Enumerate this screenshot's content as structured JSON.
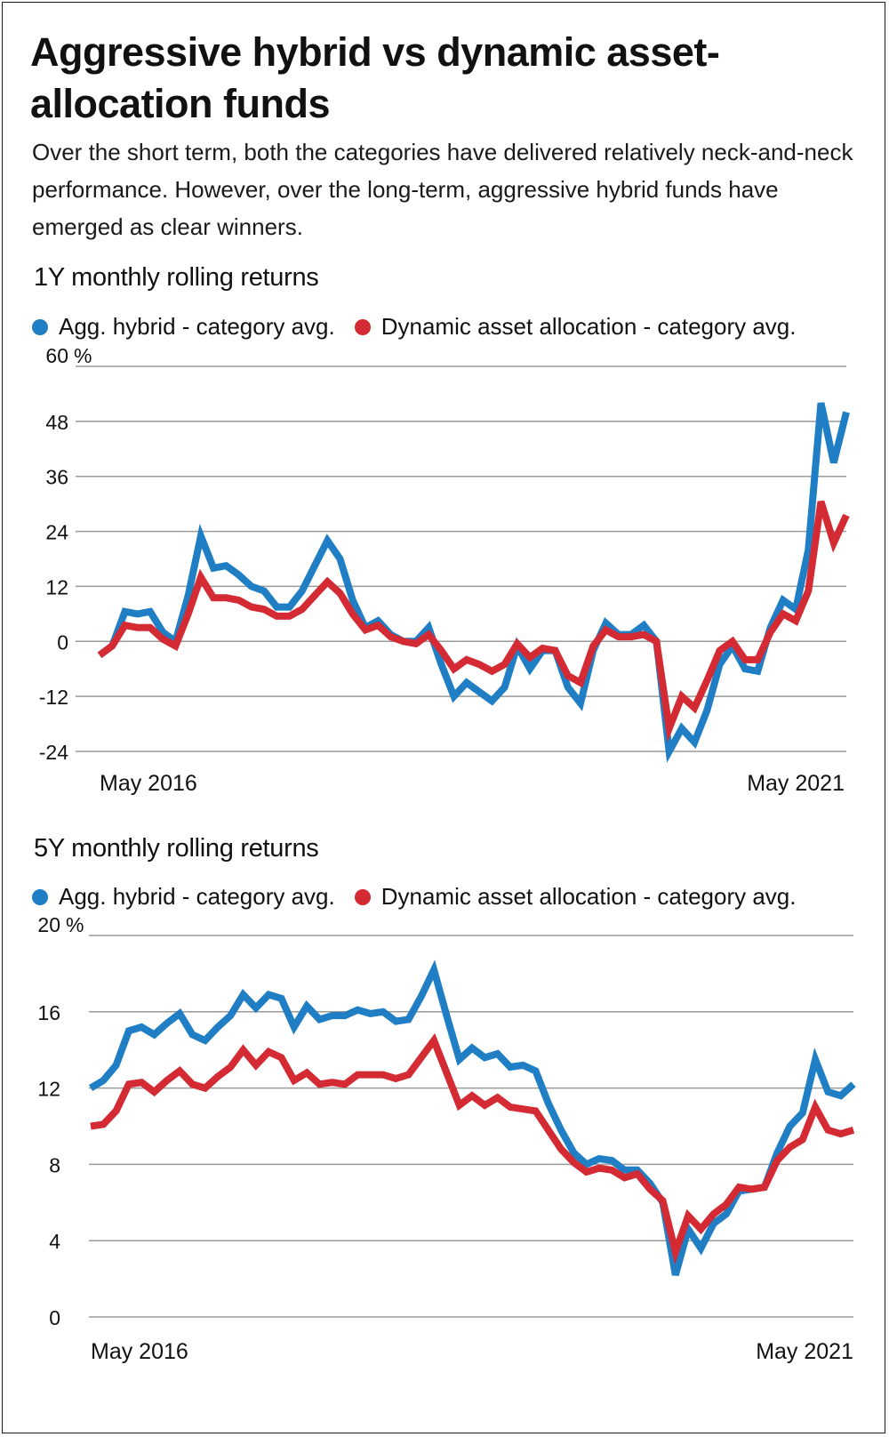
{
  "header": {
    "title": "Aggressive hybrid vs dynamic asset-allocation funds",
    "subtitle": "Over the short term, both the categories have delivered relatively neck-and-neck performance. However, over the long-term, aggressive hybrid funds have emerged as clear winners."
  },
  "colors": {
    "blue": "#1f7ec4",
    "red": "#d42a33",
    "grid": "#9a9a9a"
  },
  "chart_data": [
    {
      "type": "line",
      "title": "1Y monthly rolling returns",
      "unit": "%",
      "ylim": [
        -24,
        60
      ],
      "yticks": [
        60,
        48,
        36,
        24,
        12,
        0,
        -12,
        -24
      ],
      "x_start_label": "May 2016",
      "x_end_label": "May 2021",
      "grid": true,
      "legend_position": "top",
      "series": [
        {
          "name": "Agg. hybrid - category avg.",
          "color": "#1f7ec4",
          "values": [
            -3,
            -1,
            6.5,
            6,
            6.5,
            2,
            0,
            10,
            23,
            16,
            16.5,
            14.5,
            12,
            11,
            7.5,
            7.5,
            11,
            16.5,
            22,
            18,
            9,
            3,
            4.5,
            1.5,
            0,
            0,
            3,
            -5,
            -12,
            -9,
            -11,
            -13,
            -10,
            -1,
            -6,
            -2,
            -2,
            -10,
            -13.5,
            -2,
            4,
            1.5,
            1.5,
            3.5,
            0,
            -24,
            -19,
            -22,
            -15,
            -5,
            -1,
            -6,
            -6.5,
            3,
            9,
            7,
            20,
            52,
            39,
            50
          ]
        },
        {
          "name": "Dynamic asset allocation - category avg.",
          "color": "#d42a33",
          "values": [
            -3,
            -1,
            3.5,
            3,
            3,
            0.5,
            -1,
            6,
            14,
            9.5,
            9.5,
            9,
            7.5,
            7,
            5.5,
            5.5,
            7,
            10,
            13,
            10.5,
            6,
            2.5,
            3.5,
            1,
            0,
            -0.5,
            1.5,
            -2,
            -6,
            -4,
            -5,
            -6.5,
            -5,
            -0.5,
            -3.5,
            -1.5,
            -2,
            -7.5,
            -9,
            -1,
            2.5,
            1,
            1,
            1.5,
            0,
            -19,
            -12,
            -14.5,
            -8.5,
            -2,
            0,
            -4,
            -4,
            2,
            6,
            4.5,
            11,
            30.5,
            21.5,
            27.5
          ]
        }
      ]
    },
    {
      "type": "line",
      "title": "5Y monthly rolling returns",
      "unit": "%",
      "ylim": [
        0,
        20
      ],
      "yticks": [
        20,
        16,
        12,
        8,
        4,
        0
      ],
      "x_start_label": "May 2016",
      "x_end_label": "May 2021",
      "grid": true,
      "legend_position": "top",
      "series": [
        {
          "name": "Agg. hybrid - category avg.",
          "color": "#1f7ec4",
          "values": [
            12,
            12.4,
            13.2,
            15,
            15.2,
            14.8,
            15.4,
            15.9,
            14.8,
            14.5,
            15.2,
            15.8,
            16.9,
            16.2,
            16.9,
            16.7,
            15.2,
            16.3,
            15.6,
            15.8,
            15.8,
            16.1,
            15.9,
            16,
            15.5,
            15.6,
            16.8,
            18.2,
            15.8,
            13.5,
            14.1,
            13.6,
            13.8,
            13.1,
            13.2,
            12.9,
            11.2,
            9.8,
            8.6,
            8,
            8.3,
            8.2,
            7.7,
            7.7,
            7,
            6,
            2.2,
            4.6,
            3.6,
            4.9,
            5.4,
            6.6,
            6.7,
            6.8,
            8.6,
            10,
            10.7,
            13.5,
            11.8,
            11.6,
            12.2
          ]
        },
        {
          "name": "Dynamic asset allocation - category avg.",
          "color": "#d42a33",
          "values": [
            10,
            10.1,
            10.8,
            12.2,
            12.3,
            11.8,
            12.4,
            12.9,
            12.2,
            12,
            12.6,
            13.1,
            14,
            13.2,
            13.9,
            13.6,
            12.4,
            12.8,
            12.2,
            12.3,
            12.2,
            12.7,
            12.7,
            12.7,
            12.5,
            12.7,
            13.6,
            14.5,
            12.8,
            11.1,
            11.6,
            11.1,
            11.5,
            11,
            10.9,
            10.8,
            9.8,
            8.8,
            8.1,
            7.6,
            7.8,
            7.7,
            7.3,
            7.5,
            6.7,
            6.1,
            3.4,
            5.3,
            4.6,
            5.4,
            5.9,
            6.8,
            6.7,
            6.8,
            8.2,
            8.9,
            9.3,
            11,
            9.8,
            9.6,
            9.8
          ]
        }
      ]
    }
  ]
}
